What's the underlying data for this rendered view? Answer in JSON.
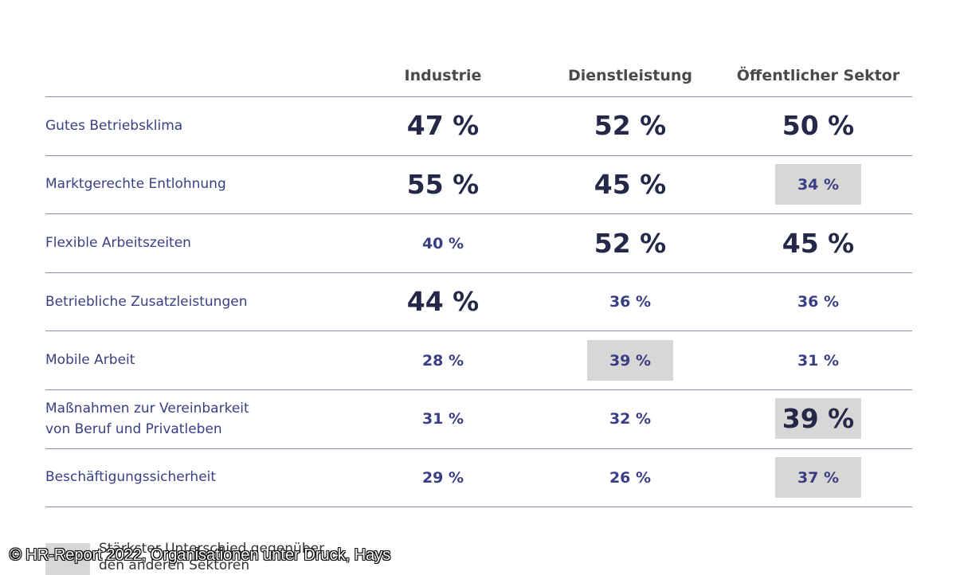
{
  "chart_data": {
    "type": "table",
    "columns": [
      "Industrie",
      "Dienstleistung",
      "Öffentlicher Sektor"
    ],
    "rows": [
      {
        "label": [
          "Gutes Betriebsklima"
        ],
        "values": [
          47,
          52,
          50
        ],
        "display": [
          "47 %",
          "52 %",
          "50 %"
        ],
        "emphasis": [
          "big",
          "big",
          "big"
        ],
        "highlight": [
          false,
          false,
          false
        ]
      },
      {
        "label": [
          "Marktgerechte Entlohnung"
        ],
        "values": [
          55,
          45,
          34
        ],
        "display": [
          "55 %",
          "45 %",
          "34 %"
        ],
        "emphasis": [
          "big",
          "big",
          "small"
        ],
        "highlight": [
          false,
          false,
          true
        ]
      },
      {
        "label": [
          "Flexible Arbeitszeiten"
        ],
        "values": [
          40,
          52,
          45
        ],
        "display": [
          "40 %",
          "52 %",
          "45 %"
        ],
        "emphasis": [
          "small",
          "big",
          "big"
        ],
        "highlight": [
          false,
          false,
          false
        ]
      },
      {
        "label": [
          "Betriebliche Zusatzleistungen"
        ],
        "values": [
          44,
          36,
          36
        ],
        "display": [
          "44 %",
          "36 %",
          "36 %"
        ],
        "emphasis": [
          "big",
          "small",
          "small"
        ],
        "highlight": [
          false,
          false,
          false
        ]
      },
      {
        "label": [
          "Mobile Arbeit"
        ],
        "values": [
          28,
          39,
          31
        ],
        "display": [
          "28 %",
          "39 %",
          "31 %"
        ],
        "emphasis": [
          "small",
          "small",
          "small"
        ],
        "highlight": [
          false,
          true,
          false
        ]
      },
      {
        "label": [
          "Maßnahmen zur Vereinbarkeit",
          "von Beruf und Privatleben"
        ],
        "values": [
          31,
          32,
          39
        ],
        "display": [
          "31 %",
          "32 %",
          "39 %"
        ],
        "emphasis": [
          "small",
          "small",
          "big"
        ],
        "highlight": [
          false,
          false,
          true
        ]
      },
      {
        "label": [
          "Beschäftigungssicherheit"
        ],
        "values": [
          29,
          26,
          37
        ],
        "display": [
          "29 %",
          "26 %",
          "37 %"
        ],
        "emphasis": [
          "small",
          "small",
          "small"
        ],
        "highlight": [
          false,
          false,
          true
        ]
      }
    ]
  },
  "legend": {
    "highlight_text": "Stärkster Unterschied gegenüber den anderen Sektoren",
    "highlight_color": "#d9d6d6"
  },
  "source": "© HR-Report 2022, Organisationen unter Druck, Hays",
  "colors": {
    "label": "#3a3f85",
    "value_big": "#252848",
    "header": "#4a4a4a",
    "rule": "#8a8ab0"
  }
}
